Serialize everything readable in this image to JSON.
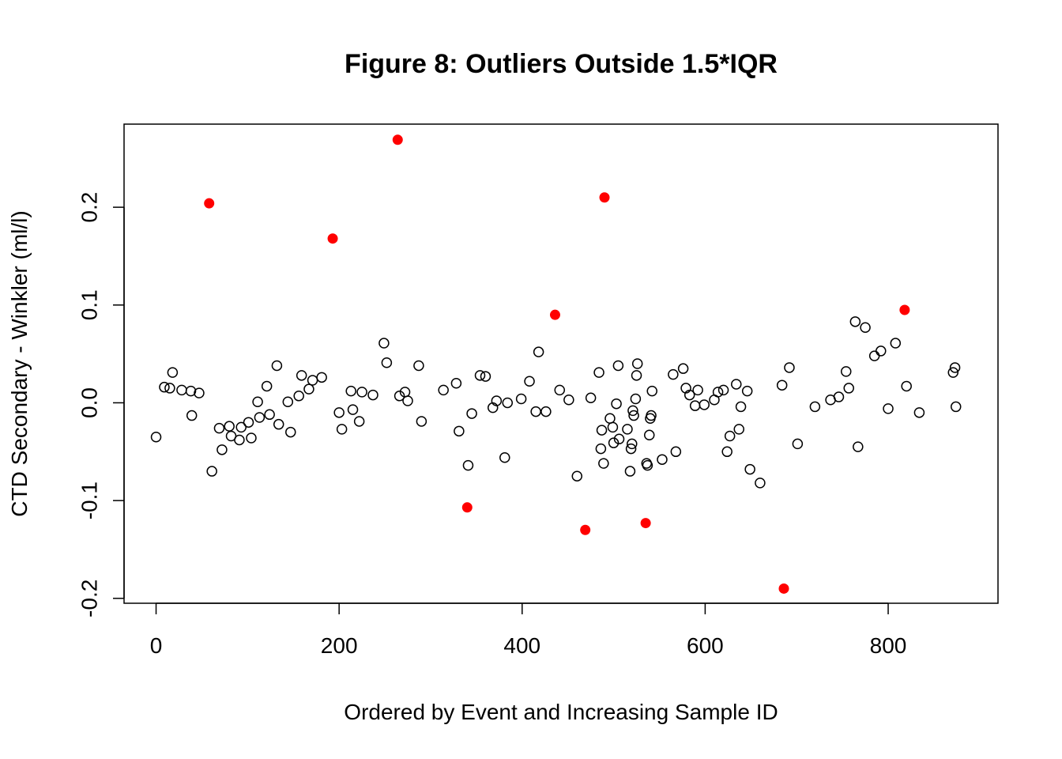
{
  "chart_data": {
    "type": "scatter",
    "title": "Figure 8: Outliers Outside 1.5*IQR",
    "xlabel": "Ordered by Event and Increasing Sample ID",
    "ylabel": "CTD Secondary - Winkler (ml/l)",
    "xlim": [
      -35,
      920
    ],
    "ylim": [
      -0.205,
      0.285
    ],
    "x_ticks": [
      0,
      200,
      400,
      600,
      800
    ],
    "x_tick_labels": [
      "0",
      "200",
      "400",
      "600",
      "800"
    ],
    "y_ticks": [
      -0.2,
      -0.1,
      0.0,
      0.1,
      0.2
    ],
    "y_tick_labels": [
      "-0.2",
      "-0.1",
      "0.0",
      "0.1",
      "0.2"
    ],
    "grid": false,
    "legend": "none",
    "colors": {
      "normal": "#000000",
      "outlier": "#ff0000"
    },
    "series": [
      {
        "marker": "open-circle",
        "color": "#000000",
        "points": [
          [
            0,
            -0.035
          ],
          [
            9,
            0.016
          ],
          [
            15,
            0.015
          ],
          [
            18,
            0.031
          ],
          [
            28,
            0.013
          ],
          [
            38,
            0.012
          ],
          [
            39,
            -0.013
          ],
          [
            47,
            0.01
          ],
          [
            61,
            -0.07
          ],
          [
            69,
            -0.026
          ],
          [
            72,
            -0.048
          ],
          [
            80,
            -0.024
          ],
          [
            82,
            -0.034
          ],
          [
            91,
            -0.038
          ],
          [
            93,
            -0.025
          ],
          [
            101,
            -0.02
          ],
          [
            104,
            -0.036
          ],
          [
            111,
            0.001
          ],
          [
            113,
            -0.015
          ],
          [
            121,
            0.017
          ],
          [
            124,
            -0.012
          ],
          [
            132,
            0.038
          ],
          [
            134,
            -0.022
          ],
          [
            144,
            0.001
          ],
          [
            147,
            -0.03
          ],
          [
            156,
            0.007
          ],
          [
            159,
            0.028
          ],
          [
            167,
            0.014
          ],
          [
            171,
            0.023
          ],
          [
            181,
            0.026
          ],
          [
            200,
            -0.01
          ],
          [
            203,
            -0.027
          ],
          [
            213,
            0.012
          ],
          [
            215,
            -0.007
          ],
          [
            222,
            -0.019
          ],
          [
            225,
            0.011
          ],
          [
            237,
            0.008
          ],
          [
            249,
            0.061
          ],
          [
            252,
            0.041
          ],
          [
            266,
            0.007
          ],
          [
            272,
            0.011
          ],
          [
            275,
            0.002
          ],
          [
            287,
            0.038
          ],
          [
            290,
            -0.019
          ],
          [
            314,
            0.013
          ],
          [
            328,
            0.02
          ],
          [
            331,
            -0.029
          ],
          [
            341,
            -0.064
          ],
          [
            345,
            -0.011
          ],
          [
            354,
            0.028
          ],
          [
            360,
            0.027
          ],
          [
            368,
            -0.005
          ],
          [
            372,
            0.002
          ],
          [
            381,
            -0.056
          ],
          [
            384,
            0.0
          ],
          [
            399,
            0.004
          ],
          [
            408,
            0.022
          ],
          [
            415,
            -0.009
          ],
          [
            418,
            0.052
          ],
          [
            426,
            -0.009
          ],
          [
            441,
            0.013
          ],
          [
            451,
            0.003
          ],
          [
            460,
            -0.075
          ],
          [
            475,
            0.005
          ],
          [
            484,
            0.031
          ],
          [
            486,
            -0.047
          ],
          [
            487,
            -0.028
          ],
          [
            489,
            -0.062
          ],
          [
            496,
            -0.016
          ],
          [
            499,
            -0.025
          ],
          [
            500,
            -0.041
          ],
          [
            503,
            -0.001
          ],
          [
            505,
            0.038
          ],
          [
            506,
            -0.037
          ],
          [
            515,
            -0.027
          ],
          [
            518,
            -0.07
          ],
          [
            519,
            -0.047
          ],
          [
            520,
            -0.042
          ],
          [
            521,
            -0.008
          ],
          [
            522,
            -0.013
          ],
          [
            524,
            0.004
          ],
          [
            525,
            0.028
          ],
          [
            526,
            0.04
          ],
          [
            536,
            -0.062
          ],
          [
            537,
            -0.064
          ],
          [
            539,
            -0.033
          ],
          [
            540,
            -0.016
          ],
          [
            541,
            -0.013
          ],
          [
            542,
            0.012
          ],
          [
            553,
            -0.058
          ],
          [
            565,
            0.029
          ],
          [
            568,
            -0.05
          ],
          [
            576,
            0.035
          ],
          [
            579,
            0.015
          ],
          [
            583,
            0.008
          ],
          [
            589,
            -0.003
          ],
          [
            592,
            0.013
          ],
          [
            599,
            -0.002
          ],
          [
            610,
            0.003
          ],
          [
            614,
            0.011
          ],
          [
            620,
            0.013
          ],
          [
            624,
            -0.05
          ],
          [
            627,
            -0.034
          ],
          [
            634,
            0.019
          ],
          [
            637,
            -0.027
          ],
          [
            639,
            -0.004
          ],
          [
            646,
            0.012
          ],
          [
            649,
            -0.068
          ],
          [
            660,
            -0.082
          ],
          [
            684,
            0.018
          ],
          [
            692,
            0.036
          ],
          [
            701,
            -0.042
          ],
          [
            720,
            -0.004
          ],
          [
            737,
            0.003
          ],
          [
            746,
            0.006
          ],
          [
            754,
            0.032
          ],
          [
            757,
            0.015
          ],
          [
            764,
            0.083
          ],
          [
            767,
            -0.045
          ],
          [
            775,
            0.077
          ],
          [
            785,
            0.048
          ],
          [
            792,
            0.053
          ],
          [
            800,
            -0.006
          ],
          [
            808,
            0.061
          ],
          [
            820,
            0.017
          ],
          [
            834,
            -0.01
          ],
          [
            871,
            0.031
          ],
          [
            873,
            0.036
          ],
          [
            874,
            -0.004
          ]
        ]
      },
      {
        "marker": "filled-circle",
        "color": "#ff0000",
        "points": [
          [
            58,
            0.204
          ],
          [
            193,
            0.168
          ],
          [
            264,
            0.269
          ],
          [
            340,
            -0.107
          ],
          [
            436,
            0.09
          ],
          [
            469,
            -0.13
          ],
          [
            490,
            0.21
          ],
          [
            535,
            -0.123
          ],
          [
            686,
            -0.19
          ],
          [
            818,
            0.095
          ]
        ]
      }
    ]
  }
}
